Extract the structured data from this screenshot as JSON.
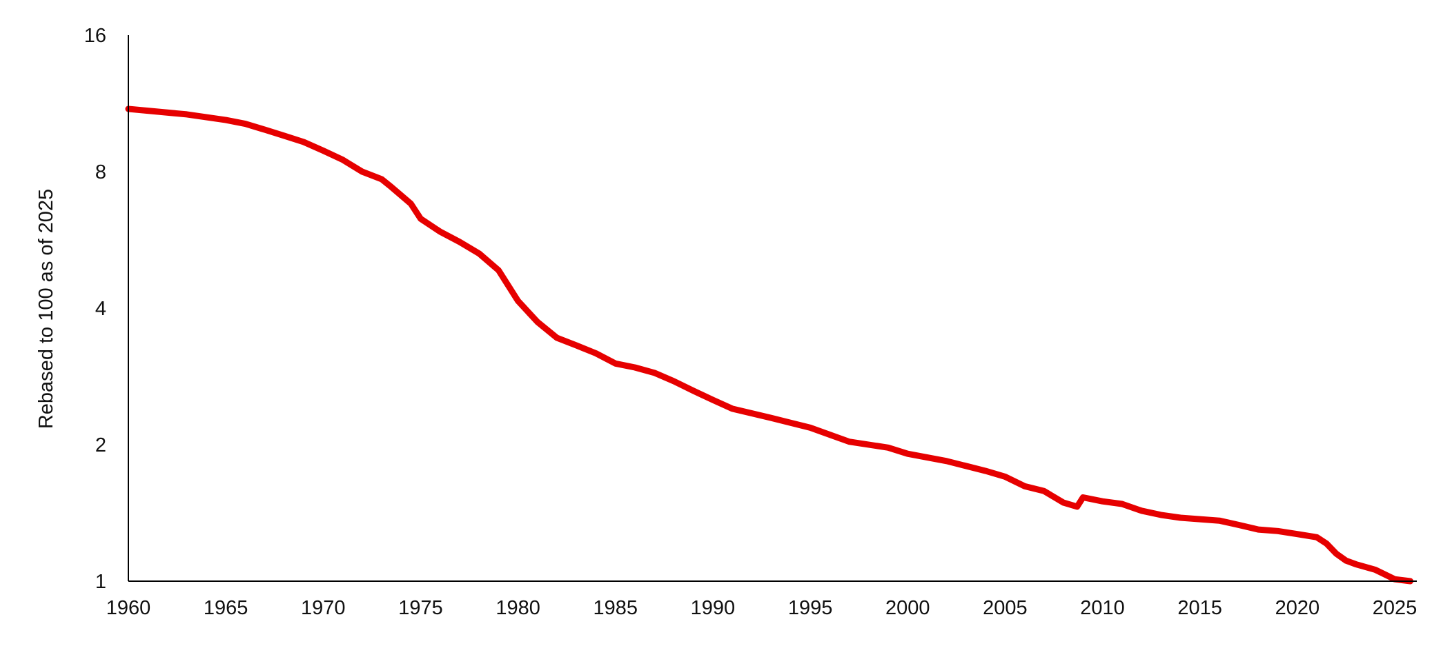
{
  "chart_data": {
    "type": "line",
    "title": "",
    "xlabel": "",
    "ylabel": "Rebased to 100 as of 2025",
    "y_scale": "log2",
    "ylim": [
      1,
      16
    ],
    "xlim": [
      1960,
      2026
    ],
    "y_ticks": [
      1,
      2,
      4,
      8,
      16
    ],
    "x_ticks": [
      1960,
      1965,
      1970,
      1975,
      1980,
      1985,
      1990,
      1995,
      2000,
      2005,
      2010,
      2015,
      2020,
      2025
    ],
    "grid": false,
    "legend": "none",
    "colors": {
      "line": "#e60000",
      "axis": "#000000"
    },
    "series": [
      {
        "x": [
          1960,
          1961,
          1963,
          1965,
          1966,
          1967,
          1968,
          1969,
          1970,
          1971,
          1972,
          1973,
          1973.5,
          1974.5,
          1975,
          1976,
          1977,
          1978,
          1979,
          1980,
          1981,
          1982,
          1983,
          1984,
          1985,
          1986,
          1987,
          1988,
          1989,
          1990,
          1991,
          1993,
          1995,
          1997,
          1999,
          2000,
          2002,
          2004,
          2005,
          2006,
          2007,
          2008,
          2008.7,
          2009,
          2010,
          2011,
          2012,
          2013,
          2014,
          2015,
          2016,
          2017,
          2018,
          2019,
          2020,
          2021,
          2021.5,
          2022,
          2022.5,
          2023,
          2024,
          2025,
          2025.8
        ],
        "y": [
          11.0,
          10.9,
          10.7,
          10.4,
          10.2,
          9.9,
          9.6,
          9.3,
          8.9,
          8.5,
          8.0,
          7.7,
          7.4,
          6.8,
          6.3,
          5.9,
          5.6,
          5.28,
          4.85,
          4.15,
          3.73,
          3.44,
          3.31,
          3.18,
          3.02,
          2.96,
          2.88,
          2.76,
          2.63,
          2.51,
          2.4,
          2.29,
          2.18,
          2.03,
          1.97,
          1.91,
          1.84,
          1.75,
          1.7,
          1.62,
          1.58,
          1.49,
          1.46,
          1.53,
          1.5,
          1.48,
          1.43,
          1.4,
          1.38,
          1.37,
          1.36,
          1.33,
          1.3,
          1.29,
          1.27,
          1.25,
          1.21,
          1.15,
          1.11,
          1.09,
          1.06,
          1.01,
          1.0
        ]
      }
    ]
  }
}
